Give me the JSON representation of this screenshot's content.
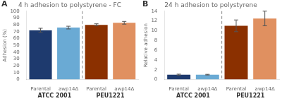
{
  "chart_data": [
    {
      "type": "bar",
      "panel_label": "A",
      "title": "4 h adhesion to polystyrene - FC",
      "ylabel": "Adhesion (%)",
      "categories": [
        "Parental",
        "awp14Δ",
        "Parental",
        "awp14Δ"
      ],
      "groups": [
        "ATCC 2001",
        "PEU1221"
      ],
      "values": [
        72,
        76,
        80,
        83
      ],
      "errors": [
        3,
        2,
        1.5,
        2
      ],
      "colors": [
        "#1e3a6e",
        "#6aaad4",
        "#8b3000",
        "#e09060"
      ],
      "ylim": [
        0,
        100
      ],
      "yticks": [
        0,
        10,
        20,
        30,
        40,
        50,
        60,
        70,
        80,
        90,
        100
      ],
      "grid": false
    },
    {
      "type": "bar",
      "panel_label": "B",
      "title": "24 h adhesion to polystyrene",
      "ylabel": "Relative adhesion",
      "categories": [
        "Parental",
        "awp14Δ",
        "Parental",
        "awp14Δ"
      ],
      "groups": [
        "ATCC 2001",
        "PEU1221"
      ],
      "values": [
        1.0,
        1.0,
        11.0,
        12.5
      ],
      "errors": [
        0.1,
        0.07,
        1.2,
        1.5
      ],
      "colors": [
        "#1e3a6e",
        "#6aaad4",
        "#8b3000",
        "#e09060"
      ],
      "ylim": [
        0,
        14
      ],
      "yticks": [
        0,
        2,
        4,
        6,
        8,
        10,
        12,
        14
      ],
      "grid": false
    }
  ]
}
